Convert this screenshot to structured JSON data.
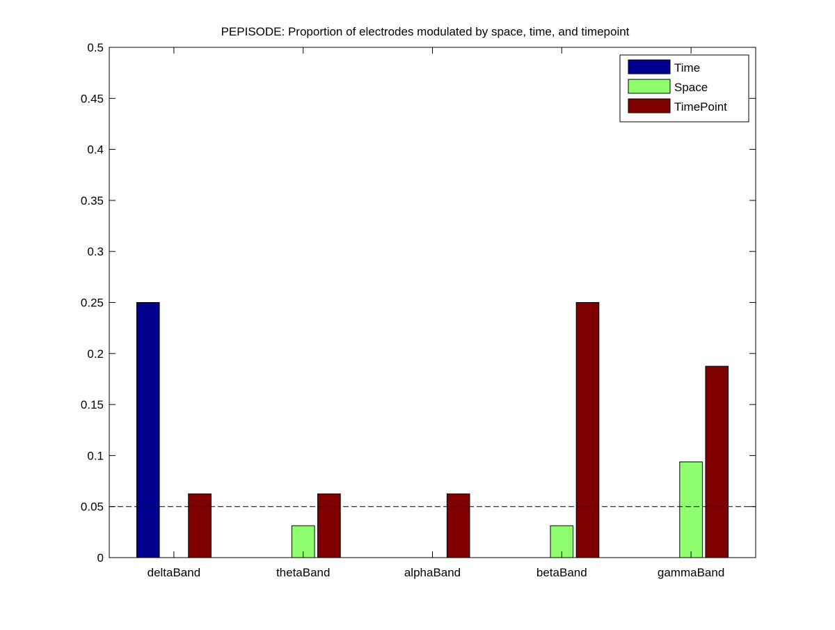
{
  "chart_data": {
    "type": "bar",
    "title": "PEPISODE: Proportion of electrodes modulated by space, time, and timepoint",
    "xlabel": "",
    "ylabel": "",
    "categories": [
      "deltaBand",
      "thetaBand",
      "alphaBand",
      "betaBand",
      "gammaBand"
    ],
    "series": [
      {
        "name": "Time",
        "color": "#00008F",
        "values": [
          0.25,
          0,
          0,
          0,
          0
        ]
      },
      {
        "name": "Space",
        "color": "#8FFF70",
        "values": [
          0,
          0.03125,
          0,
          0.03125,
          0.09375
        ]
      },
      {
        "name": "TimePoint",
        "color": "#800000",
        "values": [
          0.0625,
          0.0625,
          0.0625,
          0.25,
          0.1875
        ]
      }
    ],
    "ylim": [
      0,
      0.5
    ],
    "yticks": [
      0,
      0.05,
      0.1,
      0.15,
      0.2,
      0.25,
      0.3,
      0.35,
      0.4,
      0.45,
      0.5
    ],
    "ytick_labels": [
      "0",
      "0.05",
      "0.1",
      "0.15",
      "0.2",
      "0.25",
      "0.3",
      "0.35",
      "0.4",
      "0.45",
      "0.5"
    ],
    "reference_line": {
      "y": 0.05,
      "style": "dashed"
    },
    "legend_position": "top-right",
    "grid": false
  }
}
